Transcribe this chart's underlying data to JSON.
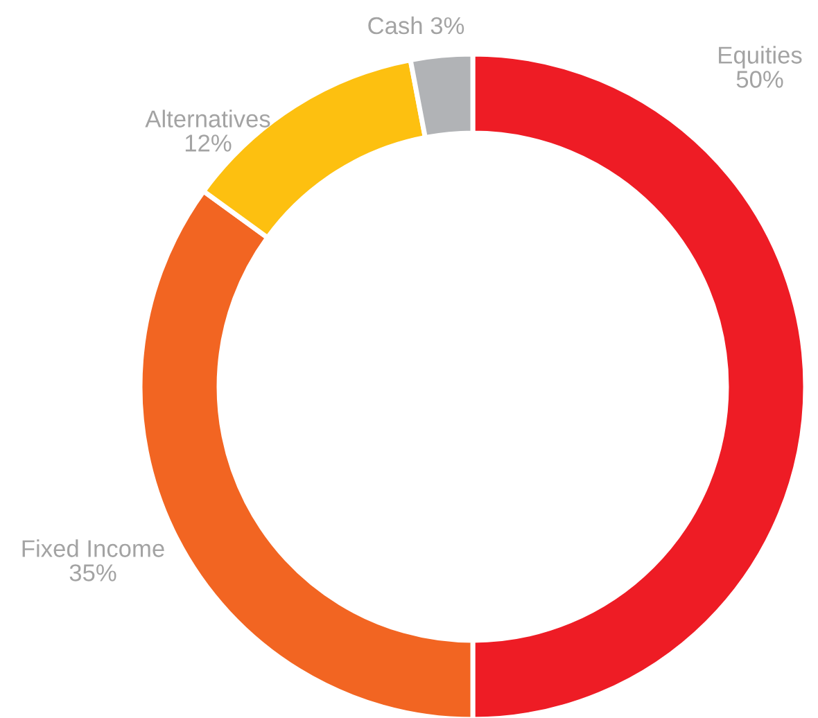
{
  "chart_data": {
    "type": "donut",
    "categories": [
      "Equities",
      "Fixed Income",
      "Alternatives",
      "Cash"
    ],
    "values": [
      50,
      35,
      12,
      3
    ],
    "colors": [
      "#ee1c25",
      "#f26522",
      "#fdc010",
      "#b1b3b6"
    ],
    "value_labels": [
      "50%",
      "35%",
      "12%",
      "3%"
    ],
    "legend": false
  }
}
